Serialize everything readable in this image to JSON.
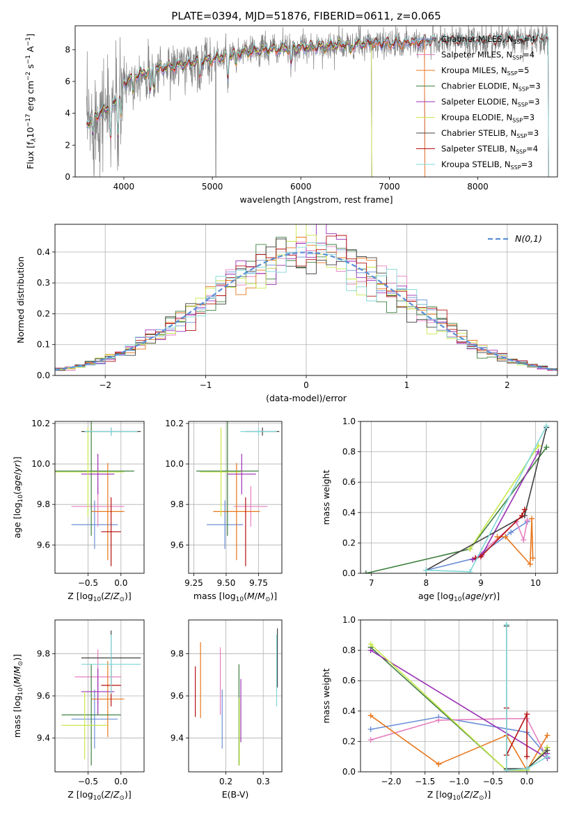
{
  "title": "PLATE=0394, MJD=51876, FIBERID=0611, z=0.065",
  "colors": {
    "spectrum": "#808080",
    "Chabrier MILES": "#6a8fd6",
    "Salpeter MILES": "#e57fbf",
    "Kroupa MILES": "#e8761b",
    "Chabrier ELODIE": "#3f7f3f",
    "Salpeter ELODIE": "#9a2fb5",
    "Kroupa ELODIE": "#c8e84a",
    "Chabrier STELIB": "#404040",
    "Salpeter STELIB": "#b41010",
    "Kroupa STELIB": "#7fd6d6",
    "normal": "#5a8fd6"
  },
  "legend_spectrum": [
    "Chabrier MILES, N_SSP=4",
    "Salpeter MILES, N_SSP=4",
    "Kroupa MILES, N_SSP=5",
    "Chabrier ELODIE, N_SSP=3",
    "Salpeter ELODIE, N_SSP=3",
    "Kroupa ELODIE, N_SSP=3",
    "Chabrier STELIB, N_SSP=3",
    "Salpeter STELIB, N_SSP=4",
    "Kroupa STELIB, N_SSP=3"
  ],
  "chart_data": [
    {
      "id": "spectrum",
      "type": "line",
      "xlabel": "wavelength [Angstrom, rest frame]",
      "ylabel": "Flux [f_λ 10^-17 erg cm^-2 s^-1 A^-1]",
      "xlim": [
        3450,
        8900
      ],
      "ylim": [
        0,
        9.5
      ],
      "xticks": [
        4000,
        5000,
        6000,
        7000,
        8000
      ],
      "yticks": [
        0,
        2,
        4,
        6,
        8
      ],
      "continuum": {
        "x": [
          3580,
          3700,
          3800,
          3900,
          4000,
          4100,
          4300,
          4500,
          4800,
          5000,
          5300,
          5600,
          5900,
          6200,
          6500,
          6800,
          7100,
          7400,
          7700,
          8000,
          8300,
          8500,
          8800
        ],
        "y": [
          3.3,
          3.9,
          4.3,
          4.7,
          5.9,
          6.3,
          6.7,
          6.9,
          7.2,
          7.4,
          7.8,
          8.0,
          8.1,
          8.2,
          8.3,
          8.4,
          8.4,
          8.5,
          8.5,
          8.5,
          8.6,
          8.6,
          8.6
        ]
      },
      "dips": [
        {
          "x": 3650,
          "depth": 1.0
        },
        {
          "x": 3850,
          "depth": 2.0
        },
        {
          "x": 3934,
          "depth": 2.3
        },
        {
          "x": 3969,
          "depth": 1.7
        },
        {
          "x": 4102,
          "depth": 1.0
        },
        {
          "x": 4300,
          "depth": 1.3
        },
        {
          "x": 4340,
          "depth": 1.0
        },
        {
          "x": 4861,
          "depth": 0.9
        },
        {
          "x": 5175,
          "depth": 1.4
        },
        {
          "x": 5270,
          "depth": 0.7
        },
        {
          "x": 5890,
          "depth": 1.1
        },
        {
          "x": 6563,
          "depth": 0.5
        }
      ],
      "model_cutoffs": {
        "Chabrier MILES": 7400,
        "Salpeter MILES": 7400,
        "Kroupa MILES": 7400,
        "Chabrier ELODIE": 6800,
        "Salpeter ELODIE": 6800,
        "Kroupa ELODIE": 6800,
        "Chabrier STELIB": 8800,
        "Salpeter STELIB": 8800,
        "Kroupa STELIB": 8800
      }
    },
    {
      "id": "residual_hist",
      "type": "histogram",
      "xlabel": "(data-model)/error",
      "ylabel": "Normed distribution",
      "xlim": [
        -2.5,
        2.5
      ],
      "ylim": [
        0,
        0.49
      ],
      "xticks": [
        -2,
        -1,
        0,
        1,
        2
      ],
      "yticks": [
        0.0,
        0.1,
        0.2,
        0.3,
        0.4
      ],
      "legend": "N(0,1)",
      "bin_width": 0.1
    },
    {
      "id": "age_vs_Z",
      "type": "errorbar",
      "xlabel": "Z [log10(Z/Z_sun)]",
      "ylabel": "age [log10(age/yr)]",
      "xlim": [
        -1.0,
        0.35
      ],
      "ylim": [
        9.46,
        10.21
      ],
      "xticks": [
        -0.5,
        0.0
      ],
      "yticks": [
        9.6,
        9.8,
        10.0,
        10.2
      ],
      "points": [
        {
          "model": "Chabrier MILES",
          "x": -0.4,
          "xerr": 0.35,
          "y": 9.7,
          "yerr": 0.12
        },
        {
          "model": "Salpeter MILES",
          "x": -0.35,
          "xerr": 0.4,
          "y": 9.79,
          "yerr": 0.1
        },
        {
          "model": "Kroupa MILES",
          "x": -0.2,
          "xerr": 0.25,
          "y": 9.765,
          "yerr": 0.24
        },
        {
          "model": "Chabrier ELODIE",
          "x": -0.45,
          "xerr": 0.65,
          "y": 9.965,
          "yerr": 0.32
        },
        {
          "model": "Salpeter ELODIE",
          "x": -0.35,
          "xerr": 0.25,
          "y": 9.95,
          "yerr": 0.1
        },
        {
          "model": "Kroupa ELODIE",
          "x": -0.5,
          "xerr": 0.55,
          "y": 9.96,
          "yerr": 0.22
        },
        {
          "model": "Chabrier STELIB",
          "x": -0.15,
          "xerr": 0.45,
          "y": 10.16,
          "yerr": 0.02
        },
        {
          "model": "Salpeter STELIB",
          "x": -0.15,
          "xerr": 0.15,
          "y": 9.665,
          "yerr": 0.17
        },
        {
          "model": "Kroupa STELIB",
          "x": -0.15,
          "xerr": 0.4,
          "y": 10.16,
          "yerr": 0.02
        }
      ]
    },
    {
      "id": "age_vs_mass",
      "type": "errorbar",
      "xlabel": "mass [log10(M/M_sun)]",
      "ylabel": "",
      "xlim": [
        9.21,
        9.93
      ],
      "ylim": [
        9.46,
        10.21
      ],
      "xticks": [
        9.25,
        9.5,
        9.75
      ],
      "yticks": [
        9.6,
        9.8,
        10.0,
        10.2
      ],
      "points": [
        {
          "model": "Chabrier MILES",
          "x": 9.49,
          "xerr": 0.14,
          "y": 9.7,
          "yerr": 0.12
        },
        {
          "model": "Salpeter MILES",
          "x": 9.69,
          "xerr": 0.13,
          "y": 9.79,
          "yerr": 0.1
        },
        {
          "model": "Kroupa MILES",
          "x": 9.58,
          "xerr": 0.18,
          "y": 9.765,
          "yerr": 0.24
        },
        {
          "model": "Chabrier ELODIE",
          "x": 9.51,
          "xerr": 0.24,
          "y": 9.965,
          "yerr": 0.32
        },
        {
          "model": "Salpeter ELODIE",
          "x": 9.62,
          "xerr": 0.11,
          "y": 9.95,
          "yerr": 0.1
        },
        {
          "model": "Kroupa ELODIE",
          "x": 9.46,
          "xerr": 0.16,
          "y": 9.96,
          "yerr": 0.22
        },
        {
          "model": "Chabrier STELIB",
          "x": 9.78,
          "xerr": 0.13,
          "y": 10.16,
          "yerr": 0.02
        },
        {
          "model": "Salpeter STELIB",
          "x": 9.65,
          "xerr": 0.0,
          "y": 9.665,
          "yerr": 0.17
        },
        {
          "model": "Kroupa STELIB",
          "x": 9.75,
          "xerr": 0.14,
          "y": 10.16,
          "yerr": 0.02
        }
      ]
    },
    {
      "id": "weight_vs_age",
      "type": "line",
      "xlabel": "age [log10(age/yr)]",
      "ylabel": "mass weight",
      "xlim": [
        6.8,
        10.4
      ],
      "ylim": [
        0,
        1.0
      ],
      "xticks": [
        7,
        8,
        9,
        10
      ],
      "yticks": [
        0.0,
        0.2,
        0.4,
        0.6,
        0.8,
        1.0
      ],
      "series": [
        {
          "model": "Chabrier MILES",
          "x": [
            8.0,
            8.9,
            9.55,
            9.85
          ],
          "y": [
            0.02,
            0.1,
            0.27,
            0.34
          ]
        },
        {
          "model": "Salpeter MILES",
          "x": [
            8.9,
            9.65,
            9.78,
            9.85
          ],
          "y": [
            0.1,
            0.34,
            0.22,
            0.35
          ]
        },
        {
          "model": "Kroupa MILES",
          "x": [
            9.3,
            9.45,
            9.9,
            9.93,
            9.95
          ],
          "y": [
            0.24,
            0.24,
            0.06,
            0.36,
            0.1
          ]
        },
        {
          "model": "Chabrier ELODIE",
          "x": [
            6.9,
            8.8,
            10.2
          ],
          "y": [
            0.0,
            0.16,
            0.83
          ]
        },
        {
          "model": "Salpeter ELODIE",
          "x": [
            8.85,
            9.02,
            10.05
          ],
          "y": [
            0.09,
            0.12,
            0.8
          ]
        },
        {
          "model": "Kroupa ELODIE",
          "x": [
            8.8,
            10.05
          ],
          "y": [
            0.16,
            0.84
          ]
        },
        {
          "model": "Chabrier STELIB",
          "x": [
            8.0,
            9.8,
            10.2
          ],
          "y": [
            0.02,
            0.38,
            0.96
          ]
        },
        {
          "model": "Salpeter STELIB",
          "x": [
            8.9,
            9.0,
            9.75,
            9.8
          ],
          "y": [
            0.1,
            0.11,
            0.38,
            0.42
          ]
        },
        {
          "model": "Kroupa STELIB",
          "x": [
            8.0,
            8.8,
            10.2
          ],
          "y": [
            0.02,
            0.01,
            0.97
          ]
        }
      ]
    },
    {
      "id": "mass_vs_Z",
      "type": "errorbar",
      "xlabel": "Z [log10(Z/Z_sun)]",
      "ylabel": "mass [log10(M/M_sun)]",
      "xlim": [
        -1.0,
        0.35
      ],
      "ylim": [
        9.24,
        9.96
      ],
      "xticks": [
        -0.5,
        0.0
      ],
      "yticks": [
        9.4,
        9.6,
        9.8
      ],
      "points": [
        {
          "model": "Chabrier MILES",
          "x": -0.4,
          "xerr": 0.35,
          "y": 9.49,
          "yerr": 0.14
        },
        {
          "model": "Salpeter MILES",
          "x": -0.35,
          "xerr": 0.35,
          "y": 9.69,
          "yerr": 0.13
        },
        {
          "model": "Kroupa MILES",
          "x": -0.2,
          "xerr": 0.25,
          "y": 9.585,
          "yerr": 0.18
        },
        {
          "model": "Chabrier ELODIE",
          "x": -0.45,
          "xerr": 0.45,
          "y": 9.51,
          "yerr": 0.24
        },
        {
          "model": "Salpeter ELODIE",
          "x": -0.35,
          "xerr": 0.25,
          "y": 9.62,
          "yerr": 0.11
        },
        {
          "model": "Kroupa ELODIE",
          "x": -0.55,
          "xerr": 0.35,
          "y": 9.46,
          "yerr": 0.16
        },
        {
          "model": "Chabrier STELIB",
          "x": -0.15,
          "xerr": 0.45,
          "y": 9.78,
          "yerr": 0.13
        },
        {
          "model": "Salpeter STELIB",
          "x": -0.15,
          "xerr": 0.15,
          "y": 9.65,
          "yerr": 0.1
        },
        {
          "model": "Kroupa STELIB",
          "x": -0.15,
          "xerr": 0.45,
          "y": 9.75,
          "yerr": 0.14
        }
      ]
    },
    {
      "id": "mass_vs_ebv",
      "type": "errorbar",
      "xlabel": "E(B-V)",
      "ylabel": "",
      "xlim": [
        0.1,
        0.35
      ],
      "ylim": [
        9.24,
        9.96
      ],
      "xticks": [
        0.2,
        0.3
      ],
      "yticks": [
        9.4,
        9.6,
        9.8
      ],
      "points": [
        {
          "model": "Chabrier MILES",
          "x": 0.19,
          "xerr": 0,
          "y": 9.49,
          "yerr": 0.14
        },
        {
          "model": "Salpeter MILES",
          "x": 0.185,
          "xerr": 0,
          "y": 9.67,
          "yerr": 0.16
        },
        {
          "model": "Kroupa MILES",
          "x": 0.132,
          "xerr": 0,
          "y": 9.675,
          "yerr": 0.18
        },
        {
          "model": "Chabrier ELODIE",
          "x": 0.235,
          "xerr": 0,
          "y": 9.51,
          "yerr": 0.24
        },
        {
          "model": "Salpeter ELODIE",
          "x": 0.24,
          "xerr": 0,
          "y": 9.53,
          "yerr": 0.15
        },
        {
          "model": "Kroupa ELODIE",
          "x": 0.236,
          "xerr": 0,
          "y": 9.43,
          "yerr": 0.16
        },
        {
          "model": "Chabrier STELIB",
          "x": 0.338,
          "xerr": 0,
          "y": 9.78,
          "yerr": 0.14
        },
        {
          "model": "Salpeter STELIB",
          "x": 0.118,
          "xerr": 0,
          "y": 9.62,
          "yerr": 0.12
        },
        {
          "model": "Kroupa STELIB",
          "x": 0.336,
          "xerr": 0,
          "y": 9.72,
          "yerr": 0.17
        }
      ]
    },
    {
      "id": "weight_vs_Z",
      "type": "line",
      "xlabel": "Z [log10(Z/Z_sun)]",
      "ylabel": "mass weight",
      "xlim": [
        -2.45,
        0.45
      ],
      "ylim": [
        0,
        1.0
      ],
      "xticks": [
        -2.0,
        -1.5,
        -1.0,
        -0.5,
        0.0
      ],
      "yticks": [
        0.0,
        0.2,
        0.4,
        0.6,
        0.8,
        1.0
      ],
      "series": [
        {
          "model": "Chabrier MILES",
          "x": [
            -2.3,
            -1.3,
            0.0,
            0.3
          ],
          "y": [
            0.28,
            0.36,
            0.26,
            0.1
          ]
        },
        {
          "model": "Salpeter MILES",
          "x": [
            -2.3,
            -1.3,
            -0.3,
            0.0,
            0.3
          ],
          "y": [
            0.21,
            0.34,
            0.35,
            0.35,
            0.09
          ]
        },
        {
          "model": "Kroupa MILES",
          "x": [
            -2.3,
            -1.3,
            -0.3,
            0.0,
            0.3
          ],
          "y": [
            0.37,
            0.05,
            0.24,
            0.01,
            0.24
          ]
        },
        {
          "model": "Chabrier ELODIE",
          "x": [
            -2.3,
            -0.3,
            0.0,
            0.3
          ],
          "y": [
            0.82,
            0.01,
            0.01,
            0.16
          ]
        },
        {
          "model": "Salpeter ELODIE",
          "x": [
            -2.3,
            0.3,
            0.3
          ],
          "y": [
            0.8,
            0.09,
            0.12
          ]
        },
        {
          "model": "Kroupa ELODIE",
          "x": [
            -2.3,
            -0.3,
            0.0,
            0.3
          ],
          "y": [
            0.84,
            0.01,
            0.01,
            0.16
          ]
        },
        {
          "model": "Chabrier STELIB",
          "x": [
            -0.3,
            -0.3,
            0.0,
            0.3
          ],
          "y": [
            0.96,
            0.02,
            0.02,
            0.14
          ]
        },
        {
          "model": "Salpeter STELIB",
          "x": [
            -0.3,
            -0.3,
            0.0,
            0.0
          ],
          "y": [
            0.42,
            0.11,
            0.38,
            0.1
          ]
        },
        {
          "model": "Kroupa STELIB",
          "x": [
            -0.3,
            -0.3,
            0.0,
            0.3
          ],
          "y": [
            0.97,
            0.01,
            0.02,
            0.1
          ]
        }
      ]
    }
  ]
}
